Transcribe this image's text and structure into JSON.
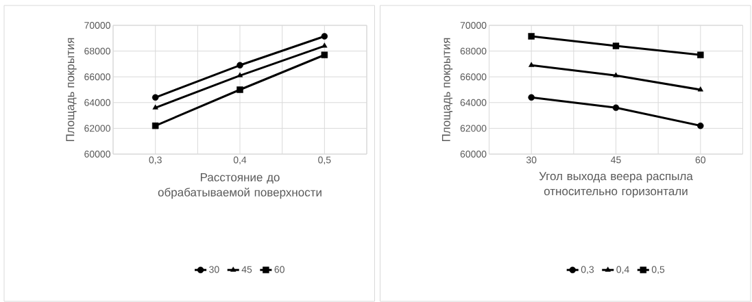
{
  "chart_data": [
    {
      "type": "line",
      "ylabel": "Площадь покрытия",
      "xlabel": "Расстояние до обрабатываемой поверхности",
      "categories": [
        "0,3",
        "0,4",
        "0,5"
      ],
      "ylim": [
        60000,
        70000
      ],
      "yticks": [
        60000,
        62000,
        64000,
        66000,
        68000,
        70000
      ],
      "grid": true,
      "legend": "bottom",
      "line_style": "solid",
      "series": [
        {
          "name": "30",
          "color": "#000000",
          "marker": "circle",
          "values": [
            64400,
            66900,
            69150
          ]
        },
        {
          "name": "45",
          "color": "#000000",
          "marker": "triangle",
          "values": [
            63600,
            66100,
            68400
          ]
        },
        {
          "name": "60",
          "color": "#000000",
          "marker": "square",
          "values": [
            62200,
            65000,
            67700
          ]
        }
      ]
    },
    {
      "type": "line",
      "ylabel": "Площадь покрытия",
      "xlabel": "Угол выхода веера распыла относительно горизонтали",
      "categories": [
        "30",
        "45",
        "60"
      ],
      "ylim": [
        60000,
        70000
      ],
      "yticks": [
        60000,
        62000,
        64000,
        66000,
        68000,
        70000
      ],
      "grid": true,
      "legend": "bottom",
      "line_style": "solid",
      "series": [
        {
          "name": "0,3",
          "color": "#000000",
          "marker": "circle",
          "values": [
            64400,
            63600,
            62200
          ]
        },
        {
          "name": "0,4",
          "color": "#000000",
          "marker": "triangle",
          "values": [
            66900,
            66100,
            65000
          ]
        },
        {
          "name": "0,5",
          "color": "#000000",
          "marker": "square",
          "values": [
            69150,
            68400,
            67700
          ]
        }
      ]
    }
  ]
}
